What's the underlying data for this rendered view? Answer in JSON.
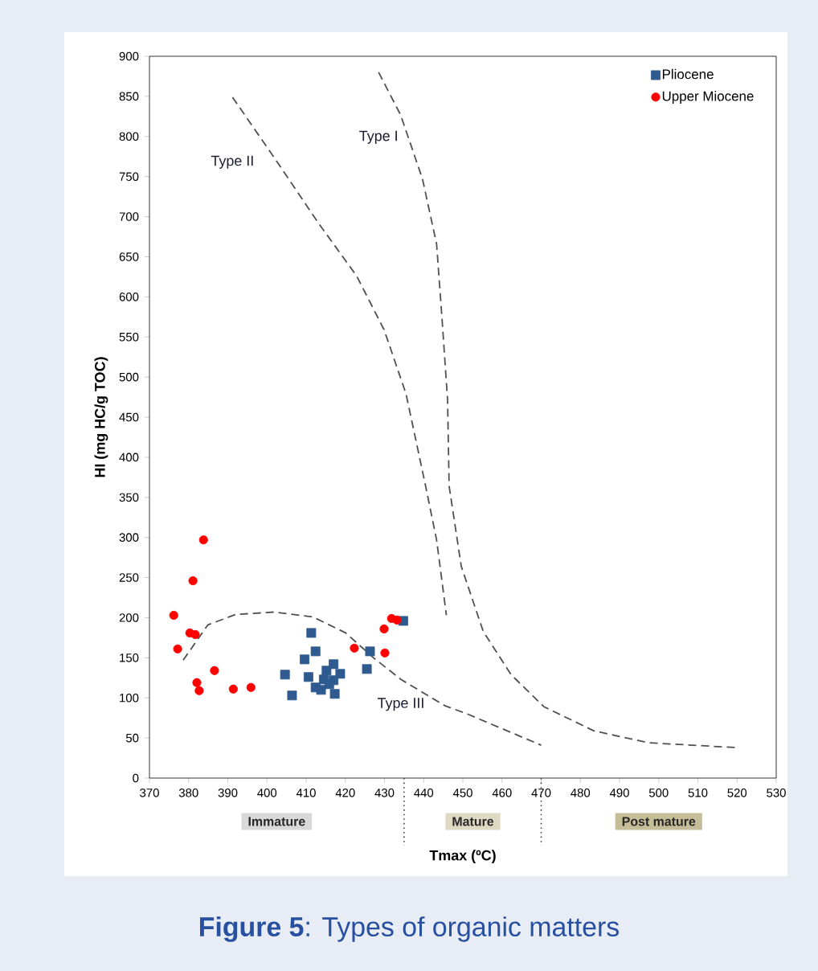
{
  "chart_data": {
    "type": "scatter",
    "title": "**Figure 5**: Types of organic matters",
    "xlabel": "Tmax (ºC)",
    "ylabel": "HI (mg HC/g TOC)",
    "xlim": [
      370,
      530
    ],
    "xticks": [
      370,
      380,
      390,
      400,
      410,
      420,
      430,
      440,
      450,
      460,
      470,
      480,
      490,
      500,
      510,
      520,
      530
    ],
    "ylim": [
      0,
      900
    ],
    "yticks": [
      0,
      50,
      100,
      150,
      200,
      250,
      300,
      350,
      400,
      450,
      500,
      550,
      600,
      650,
      700,
      750,
      800,
      850,
      900
    ],
    "grid": false,
    "legend": "top right",
    "series": [
      {
        "name": "Pliocene",
        "type": "scatter",
        "marker": "square",
        "color": "#2f5a8f",
        "x": [
          411.3,
          412.4,
          409.6,
          404.6,
          406.4,
          410.6,
          412.4,
          414.5,
          415.2,
          417.0,
          418.7,
          417.0,
          417.3,
          413.8,
          415.9,
          426.3,
          425.5,
          434.8
        ],
        "values": [
          181,
          158,
          148,
          129,
          103,
          126,
          113,
          123,
          134,
          142,
          130,
          122,
          105,
          110,
          117,
          158,
          136,
          196
        ]
      },
      {
        "name": "Upper Miocene",
        "type": "scatter",
        "marker": "circle",
        "color": "#ff0000",
        "x": [
          383.8,
          381.1,
          376.2,
          377.2,
          380.3,
          381.7,
          382.1,
          382.7,
          386.6,
          391.4,
          395.9,
          422.3,
          429.9,
          430.1,
          431.8,
          433.2
        ],
        "values": [
          297,
          246,
          203,
          161,
          181,
          179,
          119,
          109,
          134,
          111,
          113,
          162,
          186,
          156,
          199,
          197
        ]
      },
      {
        "name": "Type II",
        "type": "line",
        "line_style": "dashed",
        "marker": "none",
        "color": "#505050",
        "x": [
          391.2,
          403.2,
          413.0,
          422.9,
          429.9,
          435.5,
          440.5,
          443.3,
          445.8
        ],
        "values": [
          849,
          764,
          693,
          626,
          559,
          479,
          364,
          297,
          203
        ]
      },
      {
        "name": "Type I",
        "type": "line",
        "line_style": "dashed",
        "marker": "none",
        "color": "#505050",
        "x": [
          428.5,
          434.1,
          439.7,
          443.3,
          444.7,
          446.1,
          446.5,
          449.6,
          455.2,
          462.3,
          470.7,
          483.4,
          497.4,
          519.9
        ],
        "values": [
          880,
          827,
          747,
          666,
          572,
          472,
          364,
          264,
          183,
          129,
          89,
          59,
          44,
          38
        ]
      },
      {
        "name": "Type III",
        "type": "line",
        "line_style": "dashed",
        "marker": "none",
        "color": "#505050",
        "x": [
          378.6,
          384.9,
          392.0,
          401.8,
          411.7,
          420.1,
          427.2,
          434.2,
          445.5,
          451.1,
          470.0
        ],
        "values": [
          147,
          191,
          204,
          207,
          201,
          181,
          150,
          123,
          90,
          80,
          41
        ]
      }
    ],
    "annotations": [
      "Immature",
      "Mature",
      "Post mature"
    ]
  }
}
